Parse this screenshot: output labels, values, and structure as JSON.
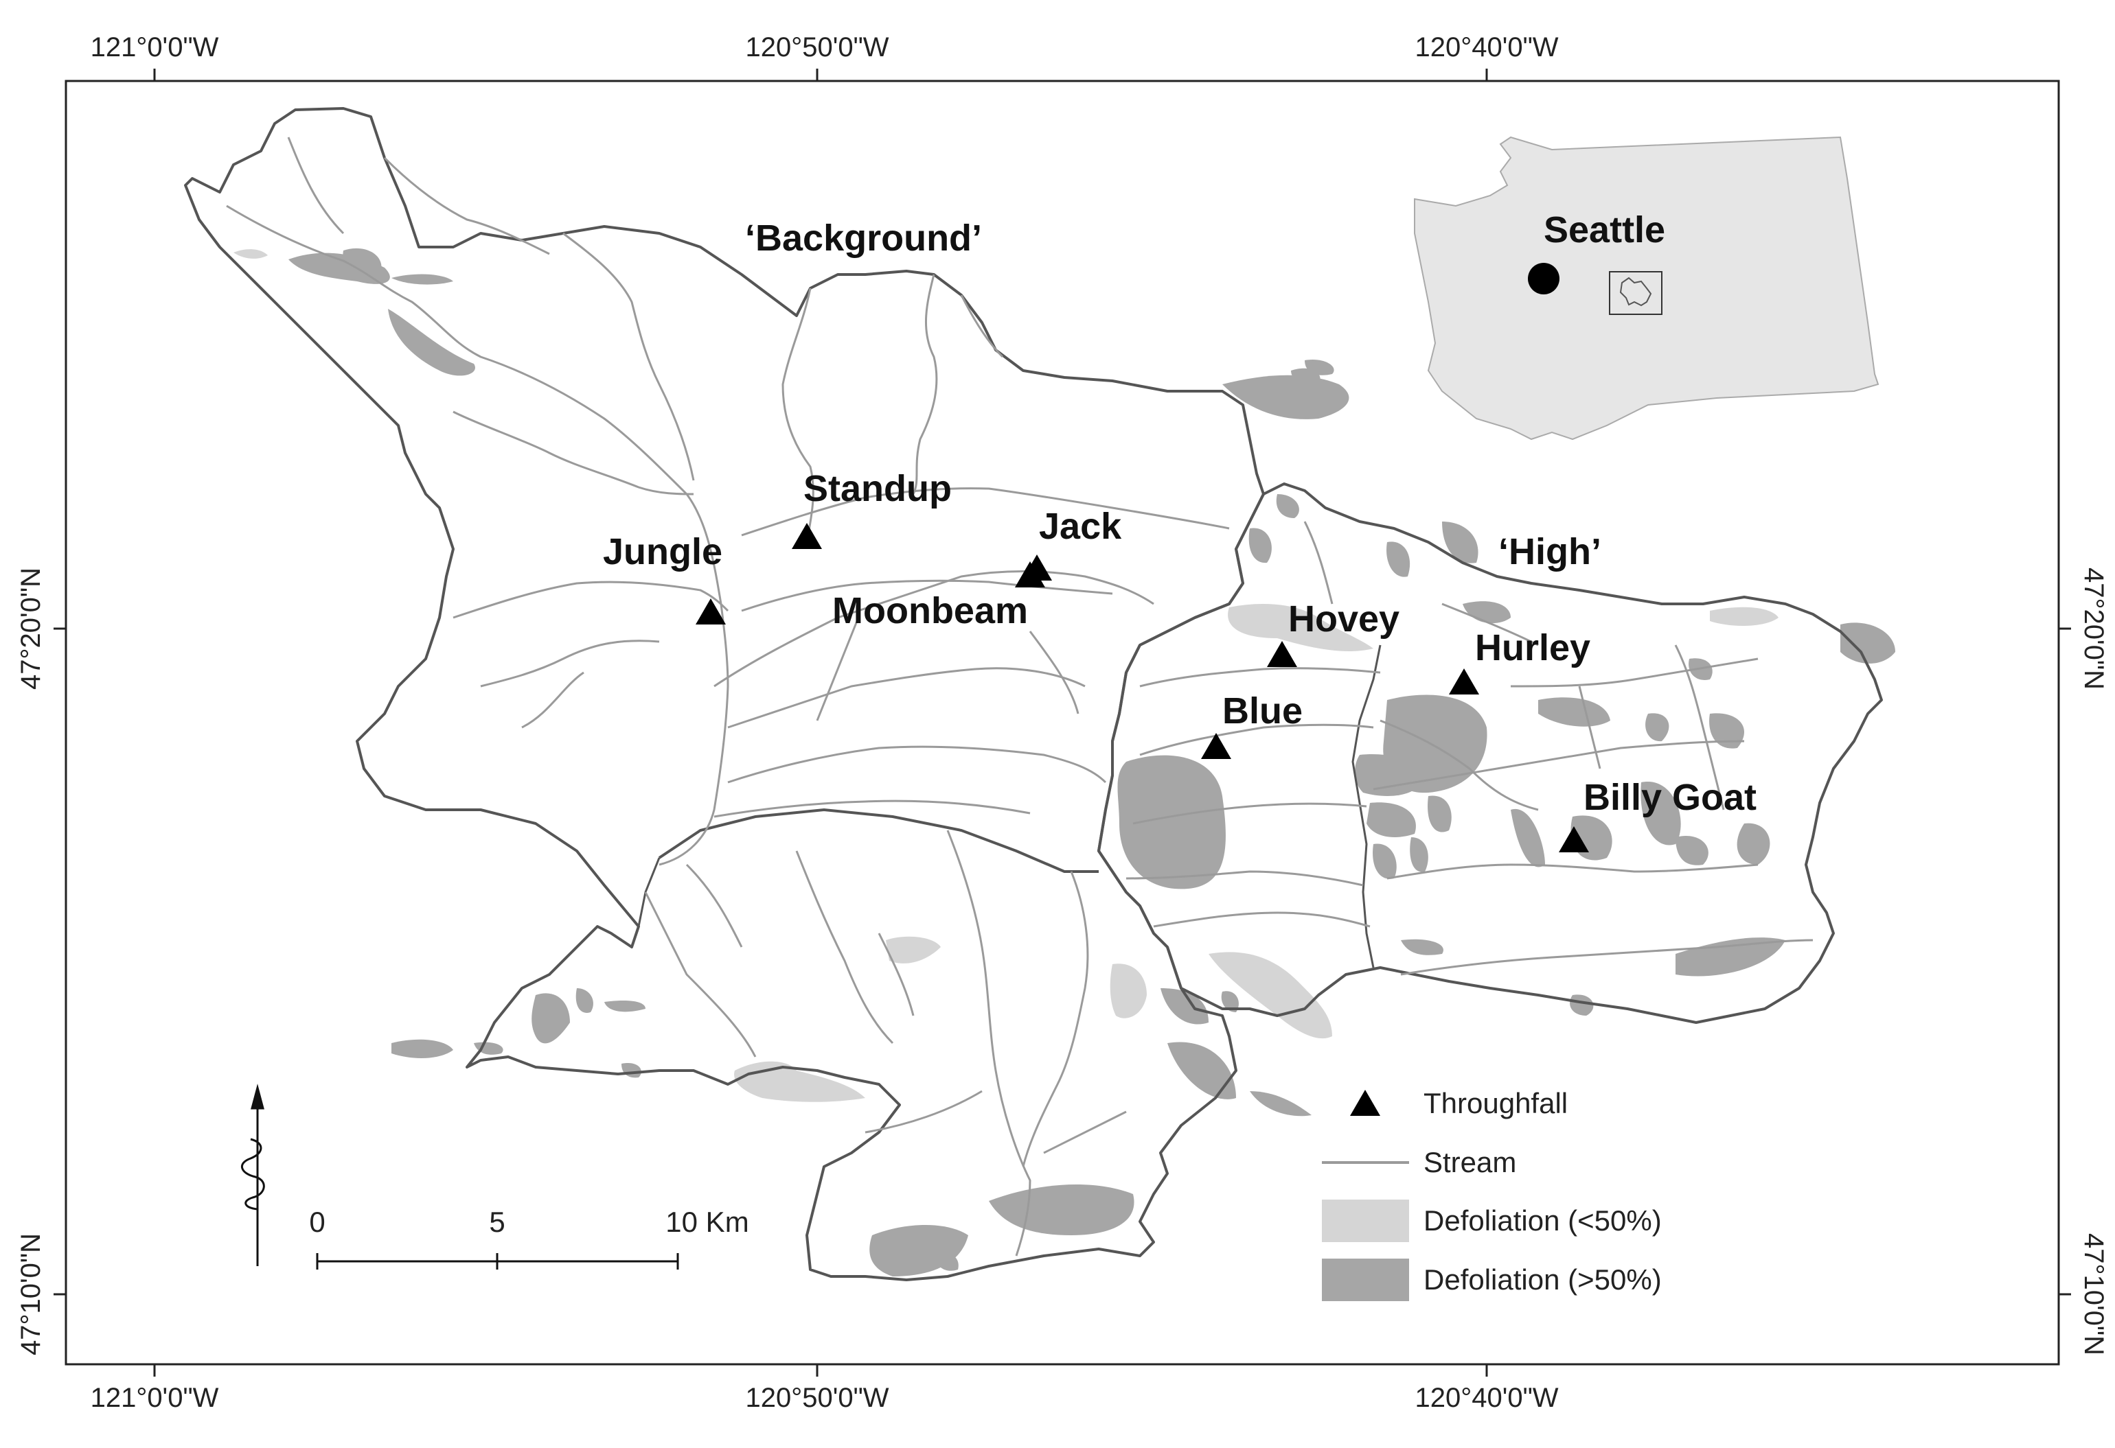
{
  "colors": {
    "boundary": "#555555",
    "stream": "#9a9a9a",
    "defol_low": "#d5d5d5",
    "defol_high": "#a6a6a6",
    "state_fill": "#e6e6e6",
    "marker": "#000000"
  },
  "axes": {
    "top": [
      "121°0'0\"W",
      "120°50'0\"W",
      "120°40'0\"W"
    ],
    "bottom": [
      "121°0'0\"W",
      "120°50'0\"W",
      "120°40'0\"W"
    ],
    "left": [
      "47°20'0\"N",
      "47°10'0\"N"
    ],
    "right": [
      "47°20'0\"N",
      "47°10'0\"N"
    ]
  },
  "region_labels": {
    "background": "‘Background’",
    "high": "‘High’"
  },
  "sites": [
    {
      "name": "Standup"
    },
    {
      "name": "Jungle"
    },
    {
      "name": "Jack"
    },
    {
      "name": "Moonbeam"
    },
    {
      "name": "Hovey"
    },
    {
      "name": "Hurley"
    },
    {
      "name": "Blue"
    },
    {
      "name": "Billy Goat"
    }
  ],
  "inset": {
    "city": "Seattle"
  },
  "legend": {
    "throughfall": "Throughfall",
    "stream": "Stream",
    "defol_low": "Defoliation (<50%)",
    "defol_high": "Defoliation (>50%)"
  },
  "scale_bar": {
    "ticks": [
      "0",
      "5",
      "10 Km"
    ]
  },
  "north_arrow": {
    "icon": "north-arrow-icon"
  }
}
